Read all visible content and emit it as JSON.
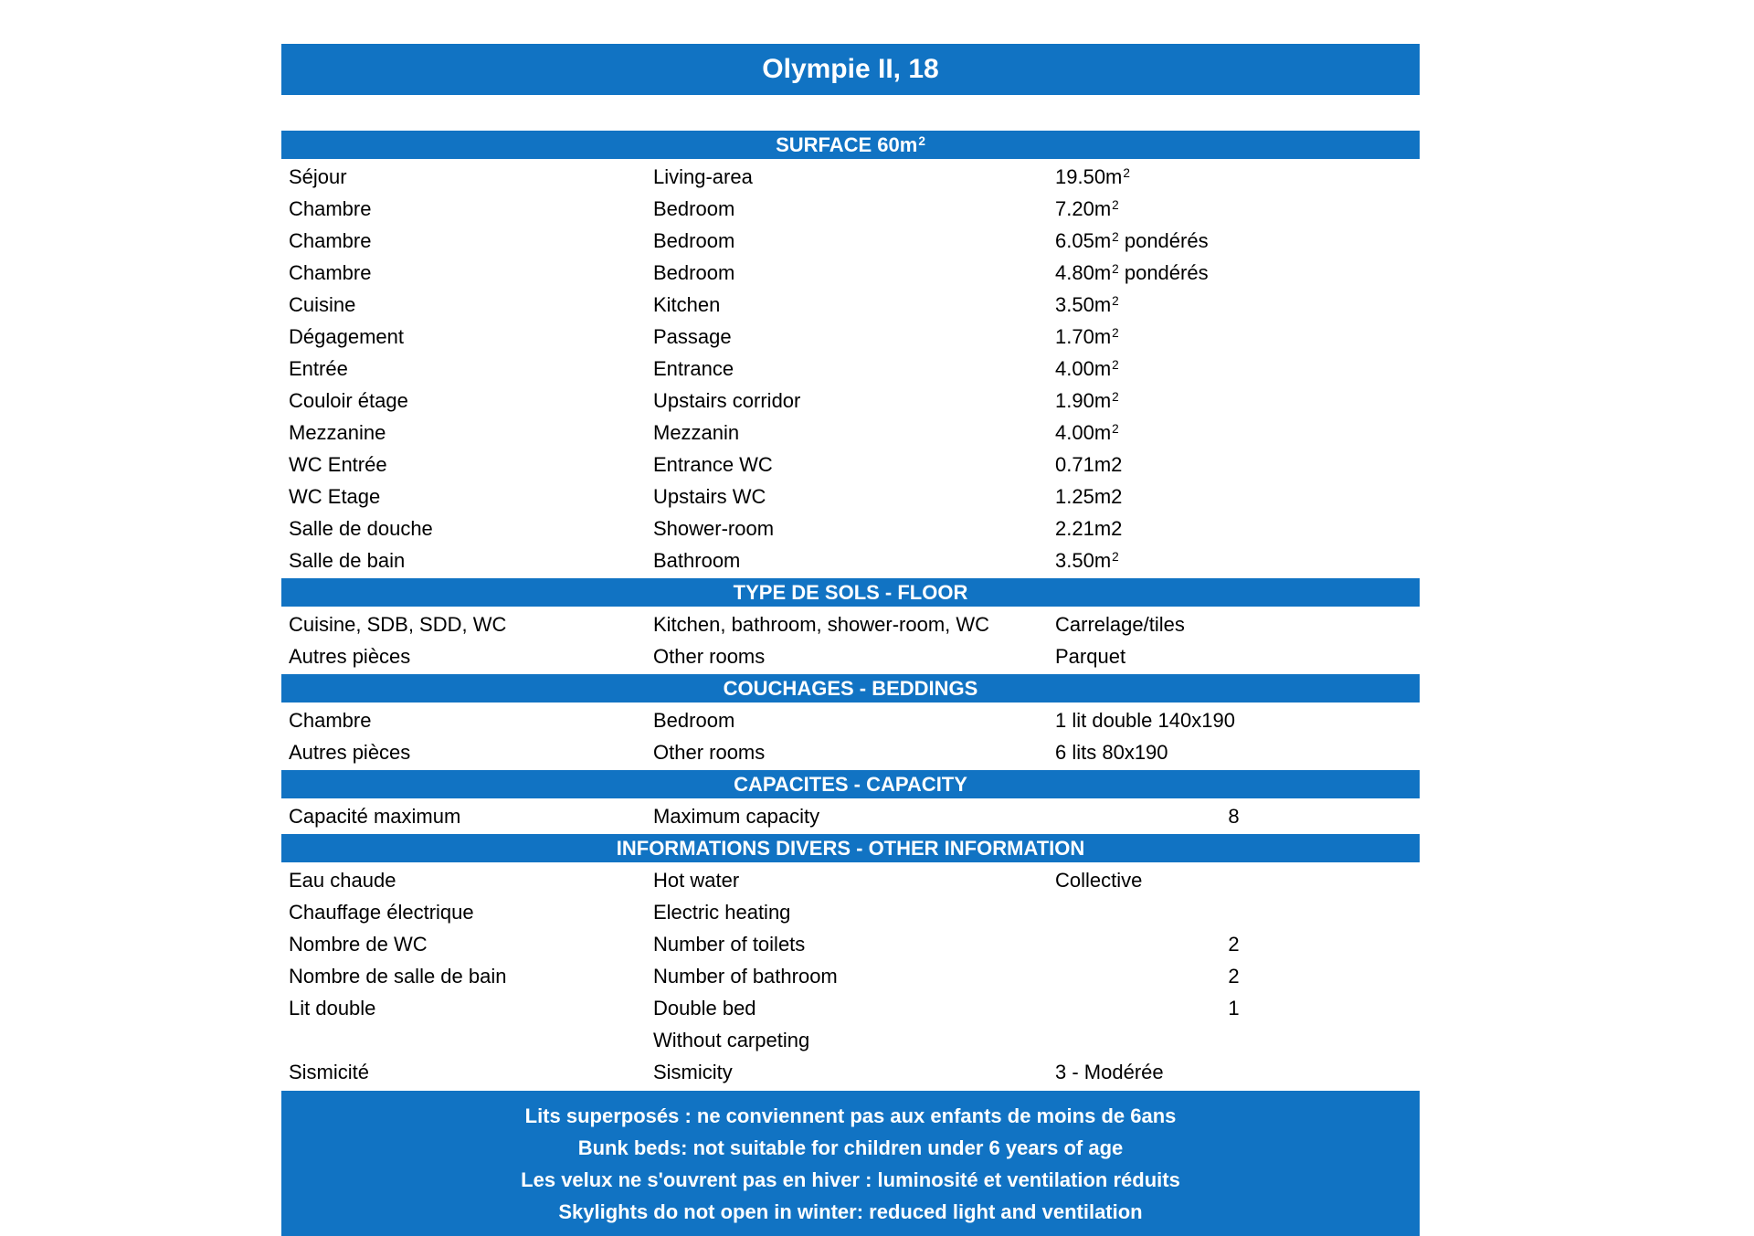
{
  "title": "Olympie II, 18",
  "colors": {
    "bar_background": "#1173c3",
    "bar_text": "#ffffff",
    "body_text": "#000000"
  },
  "sections": [
    {
      "header": "SURFACE 60m²",
      "rows": [
        {
          "fr": "Séjour",
          "en": "Living-area",
          "value": "19.50m²",
          "value_centered": false
        },
        {
          "fr": "Chambre",
          "en": "Bedroom",
          "value": "7.20m²",
          "value_centered": false
        },
        {
          "fr": "Chambre",
          "en": "Bedroom",
          "value": "6.05m² pondérés",
          "value_centered": false
        },
        {
          "fr": "Chambre",
          "en": "Bedroom",
          "value": "4.80m² pondérés",
          "value_centered": false
        },
        {
          "fr": "Cuisine",
          "en": "Kitchen",
          "value": "3.50m²",
          "value_centered": false
        },
        {
          "fr": "Dégagement",
          "en": "Passage",
          "value": "1.70m²",
          "value_centered": false
        },
        {
          "fr": "Entrée",
          "en": "Entrance",
          "value": "4.00m²",
          "value_centered": false
        },
        {
          "fr": "Couloir étage",
          "en": "Upstairs corridor",
          "value": "1.90m²",
          "value_centered": false
        },
        {
          "fr": "Mezzanine",
          "en": "Mezzanin",
          "value": "4.00m²",
          "value_centered": false
        },
        {
          "fr": "WC Entrée",
          "en": "Entrance WC",
          "value": "0.71m2",
          "value_centered": false
        },
        {
          "fr": "WC Etage",
          "en": "Upstairs WC",
          "value": "1.25m2",
          "value_centered": false
        },
        {
          "fr": "Salle de douche",
          "en": "Shower-room",
          "value": "2.21m2",
          "value_centered": false
        },
        {
          "fr": "Salle de bain",
          "en": "Bathroom",
          "value": "3.50m²",
          "value_centered": false
        }
      ]
    },
    {
      "header": "TYPE DE SOLS - FLOOR",
      "rows": [
        {
          "fr": "Cuisine, SDB, SDD, WC",
          "en": "Kitchen, bathroom, shower-room, WC",
          "value": "Carrelage/tiles",
          "value_centered": false
        },
        {
          "fr": "Autres pièces",
          "en": "Other rooms",
          "value": "Parquet",
          "value_centered": false
        }
      ]
    },
    {
      "header": "COUCHAGES - BEDDINGS",
      "rows": [
        {
          "fr": "Chambre",
          "en": "Bedroom",
          "value": "1 lit double 140x190",
          "value_centered": false
        },
        {
          "fr": "Autres pièces",
          "en": "Other rooms",
          "value": "6 lits 80x190",
          "value_centered": false
        }
      ]
    },
    {
      "header": "CAPACITES - CAPACITY",
      "rows": [
        {
          "fr": "Capacité maximum",
          "en": "Maximum capacity",
          "value": "8",
          "value_centered": true
        }
      ]
    },
    {
      "header": "INFORMATIONS DIVERS - OTHER INFORMATION",
      "rows": [
        {
          "fr": "Eau chaude",
          "en": "Hot water",
          "value": "Collective",
          "value_centered": false
        },
        {
          "fr": "Chauffage électrique",
          "en": "Electric heating",
          "value": "",
          "value_centered": false
        },
        {
          "fr": "Nombre de WC",
          "en": "Number of toilets",
          "value": "2",
          "value_centered": true
        },
        {
          "fr": "Nombre de salle de bain",
          "en": "Number of bathroom",
          "value": "2",
          "value_centered": true
        },
        {
          "fr": "Lit double",
          "en": "Double bed",
          "value": "1",
          "value_centered": true
        },
        {
          "fr": "",
          "en": "Without carpeting",
          "value": "",
          "value_centered": false
        },
        {
          "fr": "Sismicité",
          "en": "Sismicity",
          "value": "3 - Modérée",
          "value_centered": false
        }
      ]
    }
  ],
  "footer_lines": [
    "Lits superposés : ne conviennent pas aux enfants de moins de 6ans",
    "Bunk beds: not suitable for children under 6 years of age",
    "Les velux ne s'ouvrent pas en hiver : luminosité et ventilation réduits",
    "Skylights do not open in winter: reduced light and ventilation"
  ]
}
